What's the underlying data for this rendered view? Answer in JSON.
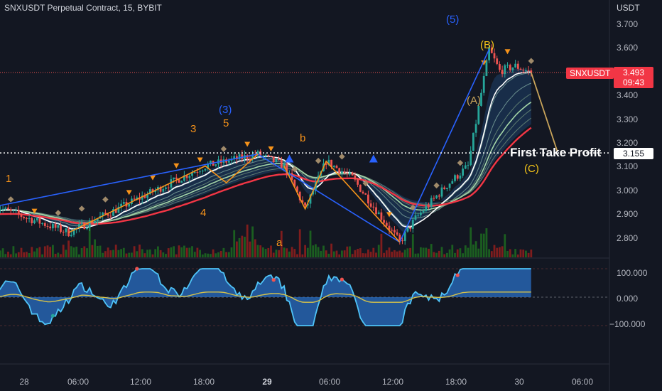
{
  "header": {
    "title": "SNXUSDT Perpetual Contract, 15, BYBIT",
    "currency": "USDT"
  },
  "price_axis": {
    "ticks": [
      "3.700",
      "3.600",
      "3.500",
      "3.400",
      "3.300",
      "3.200",
      "3.100",
      "3.000",
      "2.900",
      "2.800"
    ]
  },
  "indicator_axis": {
    "ticks": [
      "100.000",
      "0.000",
      "−100.000"
    ]
  },
  "time_axis": {
    "ticks": [
      "28",
      "06:00",
      "12:00",
      "18:00",
      "29",
      "06:00",
      "12:00",
      "18:00",
      "30",
      "06:00"
    ]
  },
  "current_price": {
    "symbol": "SNXUSDT",
    "price": "3.493",
    "countdown": "09:43"
  },
  "take_profit": {
    "label": "First Take Profit",
    "price": "3.155"
  },
  "wave_labels": {
    "w1": "1",
    "w3_small": "3",
    "w4": "4",
    "w5_small": "5",
    "w3": "(3)",
    "w5": "(5)",
    "wa": "a",
    "wb": "b",
    "wA": "(A)",
    "wB": "(B)",
    "wC": "(C)"
  },
  "colors": {
    "background": "#131722",
    "bull": "#26a69a",
    "bear": "#ef5350",
    "wave_line": "#2962ff",
    "sub_wave_line": "#f7931a",
    "projection_line": "#c8a45a",
    "ribbon_red": "#f23645",
    "ribbon_white": "#ffffff",
    "ribbon_green": "#a5d6a7",
    "volume_green": "#1b5e20",
    "volume_red": "#7f1d1d",
    "osc_blue": "#4fc3f7",
    "osc_yellow": "#d6c24a"
  },
  "chart_data": {
    "type": "candlestick",
    "symbol": "SNXUSDT",
    "interval": "15",
    "exchange": "BYBIT",
    "ylim": [
      2.74,
      3.78
    ],
    "last_price": 3.493,
    "take_profit_level": 3.155,
    "key_points": [
      {
        "time": "27 19:00",
        "price": 2.93
      },
      {
        "time": "28 02:00",
        "price": 2.82
      },
      {
        "time": "28 15:00",
        "price": 3.1
      },
      {
        "time": "28 20:00",
        "price": 3.15
      },
      {
        "time": "28 22:30",
        "price": 3.1
      },
      {
        "time": "29 00:30",
        "price": 2.92
      },
      {
        "time": "29 02:30",
        "price": 3.12
      },
      {
        "time": "29 05:00",
        "price": 3.05
      },
      {
        "time": "29 09:30",
        "price": 2.78
      },
      {
        "time": "29 11:00",
        "price": 2.88
      },
      {
        "time": "29 14:00",
        "price": 3.02
      },
      {
        "time": "29 16:00",
        "price": 3.1
      },
      {
        "time": "29 18:00",
        "price": 3.59
      },
      {
        "time": "29 19:00",
        "price": 3.5
      },
      {
        "time": "29 20:30",
        "price": 3.52
      },
      {
        "time": "29 22:00",
        "price": 3.493
      }
    ],
    "projection": [
      {
        "label": "(B)",
        "time": "29 22:00",
        "price": 3.493
      },
      {
        "label": "(C)",
        "time": "30 00:30",
        "price": 3.16
      }
    ],
    "oscillator": {
      "ylim": [
        -110,
        115
      ],
      "levels": [
        100,
        0,
        -100
      ]
    }
  }
}
